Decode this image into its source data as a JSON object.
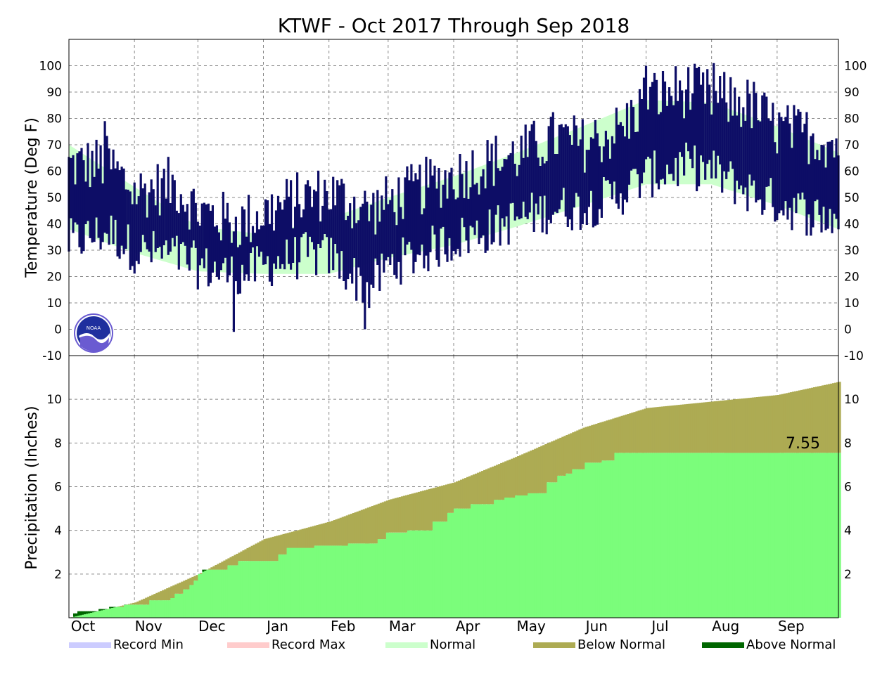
{
  "chart_data": [
    {
      "type": "line",
      "panel": "temperature",
      "title": "KTWF - Oct 2017 Through Sep 2018",
      "ylabel": "Temperature (Deg F)",
      "ylim": [
        -10,
        110
      ],
      "yticks": [
        100,
        90,
        80,
        70,
        60,
        50,
        40,
        30,
        20,
        10,
        0,
        -10
      ],
      "grid": true,
      "x_range": [
        "2017-10-01",
        "2018-09-30"
      ],
      "series": [
        {
          "name": "Normal",
          "color": "#ccffcc",
          "anchor_dates": [
            "2017-10-01",
            "2017-11-01",
            "2017-12-01",
            "2018-01-01",
            "2018-02-01",
            "2018-03-01",
            "2018-04-01",
            "2018-05-01",
            "2018-06-01",
            "2018-07-01",
            "2018-08-01",
            "2018-09-01",
            "2018-09-30"
          ],
          "normal_high": [
            70,
            54,
            39,
            36,
            42,
            50,
            58,
            67,
            77,
            87,
            86,
            77,
            67
          ],
          "normal_low": [
            38,
            29,
            22,
            21,
            21,
            27,
            32,
            39,
            47,
            55,
            55,
            47,
            38
          ]
        },
        {
          "name": "Observed",
          "color": "#0d0d66",
          "anchor_dates": [
            "2017-10-01",
            "2017-10-20",
            "2017-11-01",
            "2017-11-20",
            "2017-12-01",
            "2017-12-20",
            "2018-01-01",
            "2018-01-20",
            "2018-02-01",
            "2018-02-20",
            "2018-03-01",
            "2018-03-20",
            "2018-04-01",
            "2018-04-20",
            "2018-05-01",
            "2018-05-20",
            "2018-06-01",
            "2018-06-20",
            "2018-07-01",
            "2018-07-20",
            "2018-08-01",
            "2018-08-20",
            "2018-09-01",
            "2018-09-20",
            "2018-09-30"
          ],
          "high_trend": [
            62,
            63,
            52,
            55,
            45,
            40,
            44,
            50,
            52,
            45,
            48,
            55,
            58,
            64,
            66,
            73,
            70,
            76,
            88,
            91,
            88,
            85,
            76,
            73,
            70
          ],
          "low_trend": [
            33,
            37,
            30,
            28,
            24,
            20,
            24,
            28,
            28,
            15,
            24,
            30,
            34,
            38,
            42,
            46,
            46,
            52,
            58,
            62,
            60,
            52,
            48,
            43,
            42
          ],
          "extremes": [
            {
              "date": "2017-10-18",
              "value": 79
            },
            {
              "date": "2017-12-18",
              "value": -1
            },
            {
              "date": "2018-02-18",
              "value": 0
            },
            {
              "date": "2018-08-02",
              "value": 101
            },
            {
              "date": "2018-07-01",
              "value": 100
            }
          ]
        }
      ]
    },
    {
      "type": "area",
      "panel": "precipitation",
      "ylabel": "Precipitation (Inches)",
      "ylim": [
        0,
        12
      ],
      "yticks": [
        10,
        8,
        6,
        4,
        2
      ],
      "grid": true,
      "x_range": [
        "2017-10-01",
        "2018-09-30"
      ],
      "annotation": "7.55",
      "series": [
        {
          "name": "Normal",
          "color": "#ccffcc",
          "anchor_dates": [
            "2017-10-01",
            "2017-11-01",
            "2017-12-01",
            "2018-01-01",
            "2018-02-01",
            "2018-03-01",
            "2018-04-01",
            "2018-05-01",
            "2018-06-01",
            "2018-07-01",
            "2018-08-01",
            "2018-09-01",
            "2018-09-30"
          ],
          "values": [
            0,
            0.7,
            2.0,
            3.6,
            4.4,
            5.4,
            6.2,
            7.4,
            8.7,
            9.6,
            9.9,
            10.2,
            10.8
          ]
        },
        {
          "name": "Observed",
          "color": "#7bfd7b",
          "steps": [
            [
              "2017-10-01",
              0.0
            ],
            [
              "2017-10-03",
              0.2
            ],
            [
              "2017-10-05",
              0.3
            ],
            [
              "2017-10-15",
              0.4
            ],
            [
              "2017-10-20",
              0.5
            ],
            [
              "2017-10-27",
              0.6
            ],
            [
              "2017-11-08",
              0.8
            ],
            [
              "2017-11-18",
              0.9
            ],
            [
              "2017-11-20",
              1.1
            ],
            [
              "2017-11-24",
              1.3
            ],
            [
              "2017-11-27",
              1.5
            ],
            [
              "2017-11-29",
              1.7
            ],
            [
              "2017-12-01",
              2.0
            ],
            [
              "2017-12-03",
              2.2
            ],
            [
              "2017-12-15",
              2.4
            ],
            [
              "2017-12-20",
              2.6
            ],
            [
              "2018-01-08",
              2.9
            ],
            [
              "2018-01-12",
              3.2
            ],
            [
              "2018-01-25",
              3.3
            ],
            [
              "2018-02-10",
              3.4
            ],
            [
              "2018-02-24",
              3.6
            ],
            [
              "2018-02-28",
              3.9
            ],
            [
              "2018-03-10",
              4.0
            ],
            [
              "2018-03-22",
              4.4
            ],
            [
              "2018-03-29",
              4.8
            ],
            [
              "2018-04-01",
              5.0
            ],
            [
              "2018-04-09",
              5.2
            ],
            [
              "2018-04-20",
              5.4
            ],
            [
              "2018-04-25",
              5.5
            ],
            [
              "2018-04-30",
              5.6
            ],
            [
              "2018-05-06",
              5.7
            ],
            [
              "2018-05-15",
              6.2
            ],
            [
              "2018-05-20",
              6.5
            ],
            [
              "2018-05-24",
              6.6
            ],
            [
              "2018-05-27",
              6.8
            ],
            [
              "2018-06-02",
              7.1
            ],
            [
              "2018-06-10",
              7.2
            ],
            [
              "2018-06-16",
              7.55
            ],
            [
              "2018-09-30",
              7.55
            ]
          ]
        }
      ],
      "month_labels": [
        "Oct",
        "Nov",
        "Dec",
        "Jan",
        "Feb",
        "Mar",
        "Apr",
        "May",
        "Jun",
        "Jul",
        "Aug",
        "Sep"
      ]
    }
  ],
  "legend": [
    {
      "name": "Record Min",
      "color": "#ccccff"
    },
    {
      "name": "Record Max",
      "color": "#ffcccc"
    },
    {
      "name": "Normal",
      "color": "#ccffcc"
    },
    {
      "name": "Below Normal",
      "color": "#adab53"
    },
    {
      "name": "Above Normal",
      "color": "#006600"
    }
  ],
  "badge": "NOAA"
}
